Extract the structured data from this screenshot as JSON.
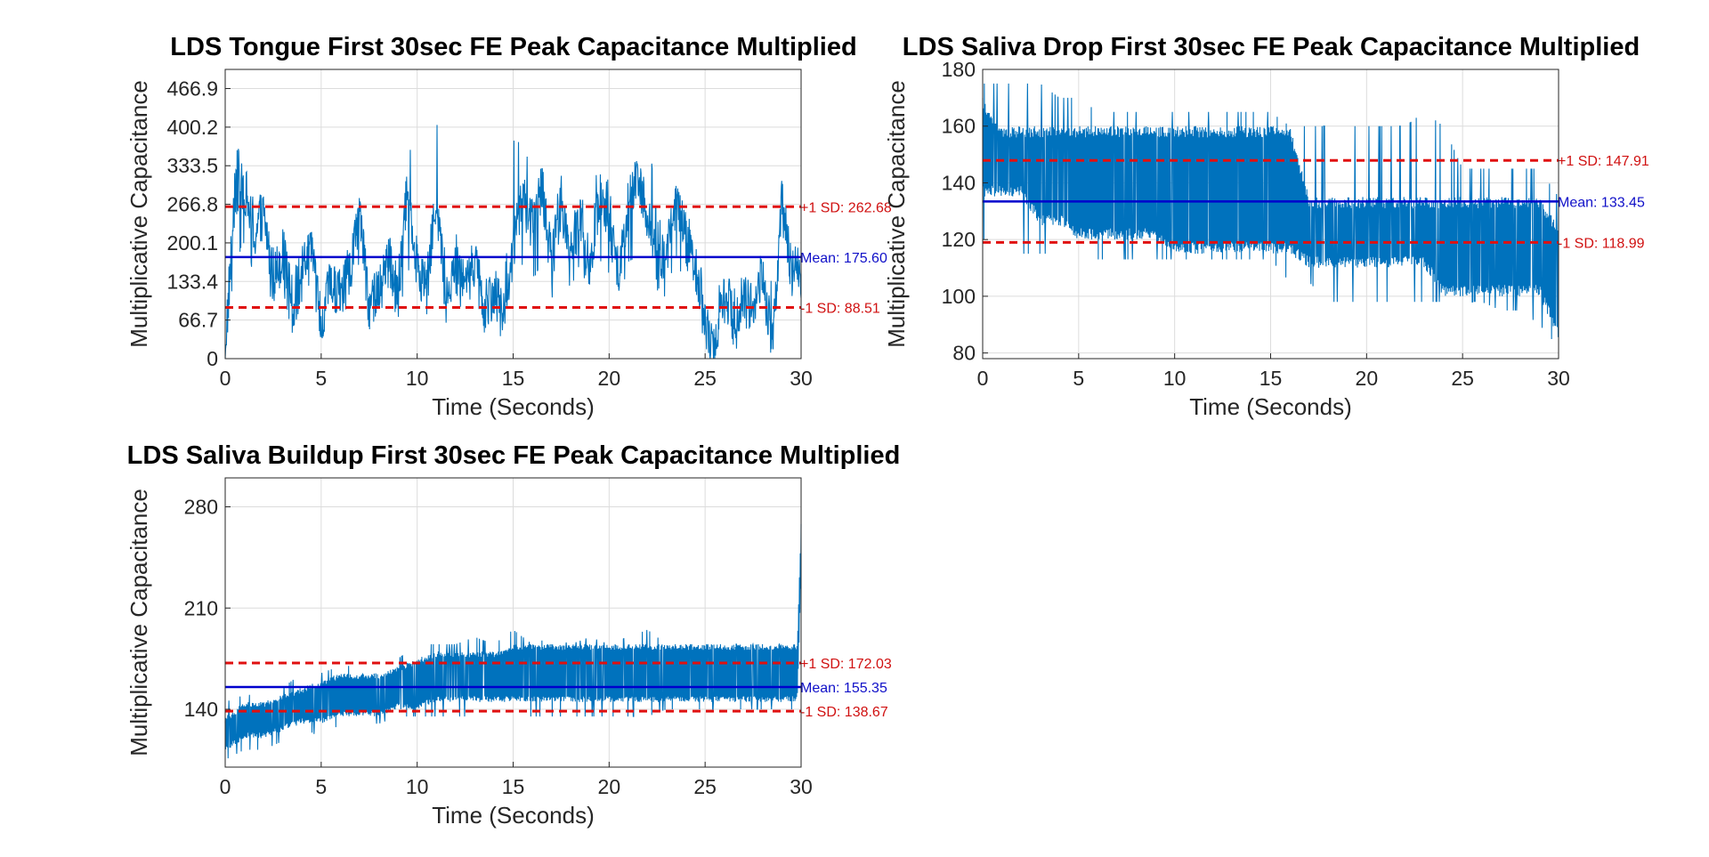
{
  "colors": {
    "signal": "#0072BD",
    "mean": "#0000CD",
    "sd": "#E01010",
    "sd_text": "#D01010",
    "mean_text": "#1010C8"
  },
  "chart_data": [
    {
      "type": "line",
      "title": "LDS Tongue First 30sec FE Peak Capacitance Multiplied",
      "xlabel": "Time (Seconds)",
      "ylabel": "Multiplicative Capacitance",
      "xlim": [
        0,
        30
      ],
      "ylim": [
        0,
        500
      ],
      "xticks": [
        0,
        5,
        10,
        15,
        20,
        25,
        30
      ],
      "yticks": [
        0,
        66.7,
        133.4,
        200.1,
        266.8,
        333.5,
        400.2,
        466.9
      ],
      "ytick_labels": [
        "0",
        "66.7",
        "133.4",
        "200.1",
        "266.8",
        "333.5",
        "400.2",
        "466.9"
      ],
      "grid": true,
      "mean": 175.6,
      "plus_sd": 262.68,
      "minus_sd": 88.51,
      "mean_label": "Mean: 175.60",
      "plus_sd_label": "+1 SD: 262.68",
      "minus_sd_label": "-1 SD: 88.51",
      "series": [
        {
          "x": [
            0,
            0.5,
            1,
            1.5,
            2,
            2.5,
            3,
            3.5,
            4,
            4.5,
            5,
            5.5,
            6,
            6.5,
            7,
            7.5,
            8,
            8.5,
            9,
            9.5,
            10,
            10.5,
            11,
            11.5,
            12,
            12.5,
            13,
            13.5,
            14,
            14.5,
            15,
            15.5,
            16,
            16.5,
            17,
            17.5,
            18,
            18.5,
            19,
            19.5,
            20,
            20.5,
            21,
            21.5,
            22,
            22.5,
            23,
            23.5,
            24,
            24.5,
            25,
            25.5,
            26,
            26.5,
            27,
            27.5,
            28,
            28.5,
            29,
            29.5,
            30
          ],
          "values": [
            20,
            280,
            300,
            210,
            250,
            140,
            180,
            90,
            150,
            200,
            60,
            130,
            110,
            150,
            260,
            90,
            120,
            180,
            100,
            300,
            160,
            120,
            280,
            100,
            180,
            120,
            170,
            90,
            120,
            70,
            190,
            280,
            230,
            300,
            160,
            270,
            190,
            240,
            140,
            280,
            230,
            150,
            270,
            320,
            250,
            150,
            190,
            280,
            200,
            160,
            60,
            20,
            130,
            60,
            100,
            90,
            140,
            30,
            270,
            150,
            150
          ],
          "spike_max": [
            60,
            370,
            380,
            280,
            300,
            200,
            240,
            140,
            200,
            220,
            100,
            180,
            160,
            200,
            280,
            140,
            170,
            220,
            160,
            430,
            200,
            160,
            430,
            150,
            220,
            160,
            220,
            140,
            160,
            120,
            380,
            380,
            350,
            360,
            220,
            330,
            250,
            300,
            200,
            380,
            300,
            200,
            380,
            420,
            430,
            240,
            250,
            300,
            260,
            220,
            120,
            80,
            180,
            120,
            150,
            140,
            200,
            130,
            430,
            230,
            200
          ],
          "spike_min": [
            0,
            160,
            200,
            140,
            170,
            70,
            110,
            40,
            90,
            130,
            20,
            80,
            70,
            90,
            170,
            50,
            70,
            120,
            60,
            150,
            100,
            70,
            120,
            60,
            110,
            70,
            110,
            40,
            70,
            20,
            90,
            160,
            130,
            170,
            100,
            160,
            120,
            160,
            90,
            170,
            140,
            90,
            160,
            180,
            150,
            90,
            110,
            170,
            120,
            100,
            0,
            0,
            60,
            0,
            40,
            30,
            60,
            0,
            110,
            90,
            100
          ]
        }
      ]
    },
    {
      "type": "line",
      "title": "LDS Saliva Drop First 30sec FE Peak Capacitance Multiplied",
      "xlabel": "Time (Seconds)",
      "ylabel": "Multiplicative Capacitance",
      "xlim": [
        0,
        30
      ],
      "ylim": [
        78,
        180
      ],
      "xticks": [
        0,
        5,
        10,
        15,
        20,
        25,
        30
      ],
      "yticks": [
        80,
        100,
        120,
        140,
        160,
        180
      ],
      "ytick_labels": [
        "80",
        "100",
        "120",
        "140",
        "160",
        "180"
      ],
      "grid": true,
      "mean": 133.45,
      "plus_sd": 147.91,
      "minus_sd": 118.99,
      "mean_label": "Mean: 133.45",
      "plus_sd_label": "+1 SD: 147.91",
      "minus_sd_label": "-1 SD: 118.99",
      "series": [
        {
          "x": [
            0,
            1,
            2,
            3,
            4,
            5,
            6,
            7,
            8,
            9,
            10,
            11,
            12,
            13,
            14,
            15,
            16,
            17,
            18,
            19,
            20,
            21,
            22,
            23,
            24,
            25,
            26,
            27,
            28,
            29,
            30
          ],
          "band_top": [
            170,
            160,
            160,
            160,
            160,
            160,
            160,
            160,
            160,
            160,
            160,
            160,
            160,
            160,
            160,
            160,
            160,
            135,
            135,
            135,
            135,
            135,
            135,
            135,
            135,
            135,
            135,
            135,
            135,
            135,
            125
          ],
          "band_bottom": [
            135,
            135,
            135,
            125,
            125,
            120,
            120,
            120,
            120,
            120,
            115,
            115,
            115,
            115,
            115,
            115,
            115,
            110,
            110,
            110,
            110,
            110,
            110,
            110,
            100,
            100,
            100,
            100,
            100,
            100,
            85
          ],
          "spike_max": [
            175,
            175,
            175,
            175,
            170,
            170,
            165,
            165,
            165,
            165,
            165,
            165,
            165,
            165,
            165,
            165,
            160,
            160,
            160,
            160,
            160,
            160,
            160,
            165,
            160,
            145,
            145,
            145,
            145,
            145,
            135
          ],
          "spike_min": [
            120,
            120,
            115,
            115,
            115,
            113,
            113,
            113,
            113,
            113,
            113,
            113,
            113,
            113,
            113,
            113,
            105,
            105,
            98,
            98,
            98,
            98,
            98,
            98,
            98,
            98,
            98,
            95,
            95,
            90,
            82
          ]
        }
      ]
    },
    {
      "type": "line",
      "title": "LDS Saliva Buildup First 30sec FE Peak Capacitance Multiplied",
      "xlabel": "Time (Seconds)",
      "ylabel": "Multiplicative Capacitance",
      "xlim": [
        0,
        30
      ],
      "ylim": [
        100,
        300
      ],
      "xticks": [
        0,
        5,
        10,
        15,
        20,
        25,
        30
      ],
      "yticks": [
        140,
        210,
        280
      ],
      "ytick_labels": [
        "140",
        "210",
        "280"
      ],
      "grid": true,
      "mean": 155.35,
      "plus_sd": 172.03,
      "minus_sd": 138.67,
      "mean_label": "Mean: 155.35",
      "plus_sd_label": "+1 SD: 172.03",
      "minus_sd_label": "-1 SD: 138.67",
      "series": [
        {
          "x": [
            0,
            1,
            2,
            3,
            4,
            5,
            6,
            7,
            8,
            9,
            10,
            11,
            12,
            13,
            14,
            15,
            16,
            17,
            18,
            19,
            20,
            21,
            22,
            23,
            24,
            25,
            26,
            27,
            28,
            29,
            29.8,
            30
          ],
          "band_top": [
            135,
            145,
            145,
            150,
            155,
            160,
            165,
            165,
            165,
            170,
            175,
            180,
            180,
            180,
            180,
            185,
            185,
            185,
            185,
            185,
            185,
            185,
            185,
            185,
            185,
            185,
            185,
            185,
            185,
            185,
            185,
            270
          ],
          "band_bottom": [
            110,
            120,
            120,
            125,
            130,
            130,
            135,
            135,
            135,
            140,
            140,
            145,
            145,
            145,
            145,
            145,
            145,
            145,
            145,
            145,
            145,
            145,
            145,
            145,
            145,
            145,
            145,
            145,
            145,
            145,
            145,
            230
          ],
          "spike_max": [
            145,
            150,
            150,
            155,
            165,
            165,
            170,
            170,
            170,
            175,
            185,
            185,
            185,
            190,
            185,
            195,
            185,
            190,
            185,
            190,
            185,
            190,
            195,
            185,
            185,
            185,
            185,
            185,
            185,
            185,
            185,
            270
          ],
          "spike_min": [
            105,
            112,
            112,
            118,
            128,
            120,
            130,
            130,
            130,
            135,
            135,
            135,
            135,
            135,
            135,
            135,
            135,
            135,
            135,
            135,
            135,
            135,
            135,
            140,
            140,
            140,
            140,
            140,
            140,
            140,
            140,
            140
          ]
        }
      ]
    }
  ]
}
